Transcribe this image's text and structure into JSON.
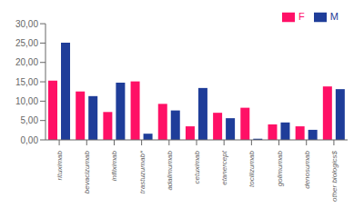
{
  "chart_data": {
    "type": "bar",
    "categories": [
      "rituximab",
      "bevacizumab",
      "infliximab",
      "trastuzumab*",
      "adalimumab",
      "cetuximab",
      "etanercept",
      "tocilizumab",
      "golimumab",
      "denosumab",
      "other biologics$"
    ],
    "series": [
      {
        "name": "F",
        "color": "#FF1066",
        "values": [
          15.3,
          12.5,
          7.2,
          15.1,
          9.3,
          3.5,
          7.0,
          8.3,
          4.0,
          3.5,
          13.8
        ]
      },
      {
        "name": "M",
        "color": "#1F3D99",
        "values": [
          25.1,
          11.3,
          14.8,
          1.6,
          7.6,
          13.4,
          5.6,
          0.3,
          4.5,
          2.6,
          13.1
        ]
      }
    ],
    "ylim": [
      0,
      30
    ],
    "yticks": [
      {
        "value": 0,
        "label": "0,00"
      },
      {
        "value": 5,
        "label": "5,00"
      },
      {
        "value": 10,
        "label": "10,00"
      },
      {
        "value": 15,
        "label": "15,00"
      },
      {
        "value": 20,
        "label": "20,00"
      },
      {
        "value": 25,
        "label": "25,00"
      },
      {
        "value": 30,
        "label": "30,00"
      }
    ],
    "grid": false,
    "legend": "upper right"
  }
}
